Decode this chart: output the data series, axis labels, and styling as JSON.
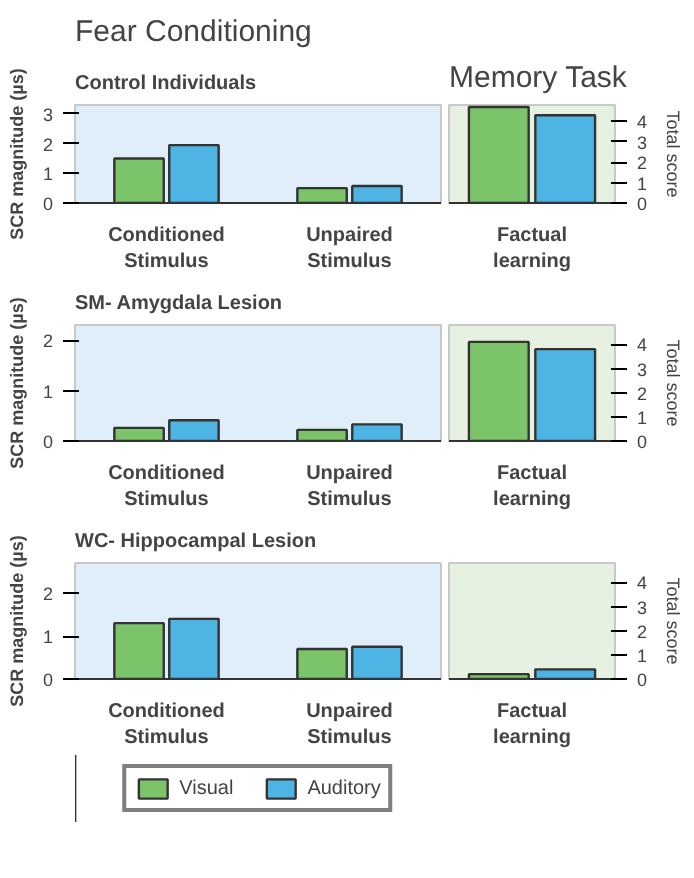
{
  "chart_data": [
    {
      "type": "bar",
      "title": "Fear Conditioning",
      "subtitle": "Control Individuals",
      "ylabel": "SCR magnitude (µs)",
      "categories": [
        "Conditioned Stimulus",
        "Unpaired Stimulus"
      ],
      "ylim": [
        0,
        3.3
      ],
      "yticks": [
        0,
        1,
        2,
        3
      ],
      "grid": false,
      "legend": false,
      "series": [
        {
          "color": "#7cc46a",
          "values": [
            1.5,
            0.5
          ]
        },
        {
          "color": "#4db4e3",
          "values": [
            1.95,
            0.57
          ]
        }
      ]
    },
    {
      "type": "bar",
      "title": "Memory Task",
      "y2label": "Total score",
      "categories": [
        "Factual learning"
      ],
      "y2lim": [
        0,
        4.8
      ],
      "y2ticks": [
        0,
        1,
        2,
        3,
        4
      ],
      "grid": false,
      "legend": false,
      "series": [
        {
          "color": "#7cc46a",
          "values": [
            4.7
          ],
          "axis": "y2"
        },
        {
          "color": "#4db4e3",
          "values": [
            4.3
          ],
          "axis": "y2"
        }
      ]
    },
    {
      "type": "bar",
      "subtitle": "SM- Amygdala Lesion",
      "ylabel": "SCR magnitude (µs)",
      "categories": [
        "Conditioned Stimulus",
        "Unpaired Stimulus"
      ],
      "ylim": [
        0,
        2.3
      ],
      "yticks": [
        0,
        1,
        2
      ],
      "grid": false,
      "legend": false,
      "series": [
        {
          "color": "#7cc46a",
          "values": [
            0.26,
            0.22
          ]
        },
        {
          "color": "#4db4e3",
          "values": [
            0.41,
            0.33
          ]
        }
      ]
    },
    {
      "type": "bar",
      "y2label": "Total score",
      "categories": [
        "Factual learning"
      ],
      "y2lim": [
        0,
        4.8
      ],
      "y2ticks": [
        0,
        1,
        2,
        3,
        4
      ],
      "grid": false,
      "legend": false,
      "series": [
        {
          "color": "#7cc46a",
          "values": [
            4.1
          ],
          "axis": "y2"
        },
        {
          "color": "#4db4e3",
          "values": [
            3.8
          ],
          "axis": "y2"
        }
      ]
    },
    {
      "type": "bar",
      "subtitle": "WC- Hippocampal Lesion",
      "ylabel": "SCR magnitude (µs)",
      "categories": [
        "Conditioned Stimulus",
        "Unpaired Stimulus"
      ],
      "ylim": [
        0,
        2.7
      ],
      "yticks": [
        0,
        1,
        2
      ],
      "grid": false,
      "legend": "bottom",
      "series": [
        {
          "name": "Visual",
          "color": "#7cc46a",
          "values": [
            1.3,
            0.7
          ]
        },
        {
          "name": "Auditory",
          "color": "#4db4e3",
          "values": [
            1.4,
            0.75
          ]
        }
      ]
    },
    {
      "type": "bar",
      "y2label": "Total score",
      "categories": [
        "Factual learning"
      ],
      "y2lim": [
        0,
        4.8
      ],
      "y2ticks": [
        0,
        1,
        2,
        3,
        4
      ],
      "grid": false,
      "legend": false,
      "series": [
        {
          "color": "#7cc46a",
          "values": [
            0.2
          ],
          "axis": "y2"
        },
        {
          "color": "#4db4e3",
          "values": [
            0.4
          ],
          "axis": "y2"
        }
      ]
    }
  ]
}
